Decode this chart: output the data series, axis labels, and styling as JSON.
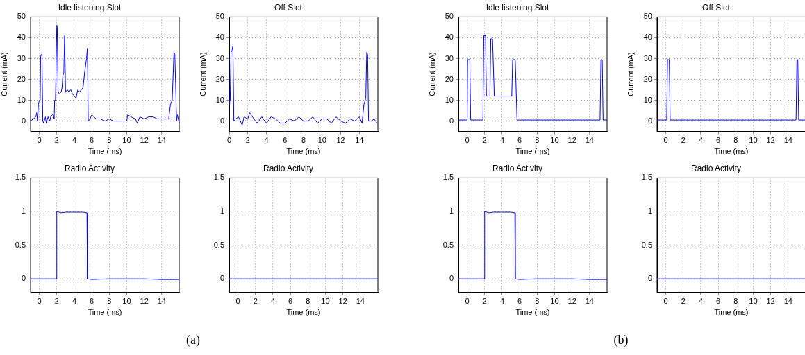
{
  "chart_data": [
    {
      "type": "line",
      "title": "Idle listening Slot",
      "xlabel": "Time (ms)",
      "ylabel": "Current (mA)",
      "xlim": [
        -1,
        16
      ],
      "xticks": [
        0,
        2,
        4,
        6,
        8,
        10,
        12,
        14
      ],
      "ylim": [
        -5,
        50
      ],
      "yticks": [
        0,
        10,
        20,
        30,
        40,
        50
      ],
      "grid": true,
      "series": [
        {
          "color": "#0000ff",
          "x": [
            -1,
            -0.7,
            -0.4,
            -0.3,
            -0.2,
            -0.1,
            0,
            0.1,
            0.15,
            0.25,
            0.3,
            0.4,
            0.5,
            0.7,
            0.8,
            1,
            1.2,
            1.3,
            1.5,
            1.6,
            1.7,
            1.75,
            1.85,
            2,
            2.05,
            2.15,
            2.3,
            2.5,
            2.6,
            2.7,
            2.8,
            2.9,
            3,
            3.2,
            3.4,
            3.6,
            3.8,
            4,
            4.2,
            4.4,
            4.6,
            4.8,
            5,
            5.2,
            5.4,
            5.5,
            5.6,
            5.8,
            6,
            6.5,
            7,
            7.5,
            8,
            8.5,
            9,
            9.5,
            10,
            10.1,
            10.5,
            11,
            11.2,
            11.5,
            12,
            12.5,
            13,
            13.5,
            14,
            14.5,
            14.8,
            15,
            15.2,
            15.4,
            15.5,
            15.7,
            15.8,
            16
          ],
          "values": [
            0,
            1,
            2,
            4,
            0,
            8,
            10,
            10,
            31,
            32,
            32,
            0,
            -1,
            2,
            -1,
            2,
            0,
            2,
            3,
            3,
            1,
            10,
            10,
            46,
            45,
            14,
            13,
            14,
            16,
            22,
            23,
            41,
            14,
            15,
            14,
            15,
            13,
            12,
            11,
            15,
            14,
            15,
            16,
            24,
            30,
            35,
            0,
            1,
            3,
            1,
            1,
            0,
            1,
            0,
            0,
            0,
            0,
            3,
            2,
            1,
            -1,
            2,
            1,
            2,
            2,
            1,
            1,
            1,
            1,
            8,
            10,
            33,
            32,
            0,
            3,
            -1
          ]
        }
      ]
    },
    {
      "type": "line",
      "title": "Off Slot",
      "xlabel": "Time (ms)",
      "ylabel": "Current (mA)",
      "xlim": [
        0,
        16
      ],
      "xticks": [
        0,
        2,
        4,
        6,
        8,
        10,
        12,
        14
      ],
      "ylim": [
        -5,
        50
      ],
      "yticks": [
        0,
        10,
        20,
        30,
        40,
        50
      ],
      "grid": true,
      "series": [
        {
          "color": "#0000ff",
          "x": [
            0,
            0.05,
            0.1,
            0.2,
            0.3,
            0.4,
            0.5,
            0.7,
            1,
            1.4,
            1.6,
            2,
            2.2,
            2.5,
            3,
            3.5,
            4,
            4.5,
            5,
            5.5,
            6,
            6.5,
            7,
            7.5,
            8,
            8.5,
            9,
            9.5,
            10,
            10.5,
            11,
            11.5,
            12,
            12.5,
            13,
            13.5,
            14,
            14.3,
            14.5,
            14.7,
            14.8,
            14.9,
            15,
            15.3,
            15.6,
            15.9
          ],
          "values": [
            8,
            10,
            10,
            33,
            34,
            36,
            0,
            1,
            2,
            -2,
            2,
            1,
            4,
            2,
            -1,
            2,
            -1,
            2,
            1,
            -1,
            -1,
            1,
            0,
            2,
            0,
            0,
            2,
            -1,
            1,
            1,
            -1,
            2,
            0,
            -1,
            1,
            0,
            2,
            -1,
            8,
            11,
            33,
            32,
            0,
            0,
            1,
            -1
          ]
        }
      ]
    },
    {
      "type": "line",
      "title": "Radio Activity",
      "xlabel": "Time (ms)",
      "xlim": [
        -1,
        16
      ],
      "xticks": [
        0,
        2,
        4,
        6,
        8,
        10,
        12,
        14
      ],
      "ylim": [
        -0.2,
        1.5
      ],
      "yticks": [
        0,
        0.5,
        1,
        1.5
      ],
      "grid": true,
      "annotations": [
        "(a)"
      ],
      "series": [
        {
          "color": "#0000ff",
          "x": [
            -1,
            1.95,
            2,
            2.5,
            3,
            4,
            5,
            5.45,
            5.5,
            6,
            8,
            10,
            12,
            14,
            16
          ],
          "values": [
            0,
            0,
            1,
            0.98,
            0.99,
            0.99,
            0.99,
            0.98,
            0,
            -0.01,
            0,
            0,
            0,
            -0.01,
            -0.01
          ]
        }
      ]
    },
    {
      "type": "line",
      "title": "Radio Activity",
      "xlabel": "Time (ms)",
      "xlim": [
        -1,
        16
      ],
      "xticks": [
        0,
        2,
        4,
        6,
        8,
        10,
        12,
        14
      ],
      "ylim": [
        -0.2,
        1.5
      ],
      "yticks": [
        0,
        0.5,
        1,
        1.5
      ],
      "grid": true,
      "series": [
        {
          "color": "#0000ff",
          "x": [
            -1,
            16
          ],
          "values": [
            0,
            0
          ]
        }
      ]
    },
    {
      "type": "line",
      "title": "Idle listening Slot",
      "xlabel": "Time (ms)",
      "ylabel": "Current (mA)",
      "xlim": [
        -1,
        16
      ],
      "xticks": [
        0,
        2,
        4,
        6,
        8,
        10,
        12,
        14
      ],
      "ylim": [
        -5,
        50
      ],
      "yticks": [
        0,
        10,
        20,
        30,
        40,
        50
      ],
      "grid": true,
      "series": [
        {
          "color": "#0000ff",
          "x": [
            -1,
            0,
            0.05,
            0.3,
            0.4,
            1.8,
            1.9,
            2.1,
            2.2,
            2.6,
            2.7,
            2.9,
            3.1,
            5.1,
            5.2,
            5.5,
            5.7,
            15.2,
            15.3,
            15.45,
            15.55,
            16
          ],
          "values": [
            0.5,
            0.5,
            29.5,
            29.5,
            0.5,
            0.5,
            41,
            41,
            12,
            12,
            39.5,
            39.5,
            12,
            12,
            29.5,
            29.5,
            0.5,
            0.5,
            29.5,
            29.5,
            0.5,
            0.5
          ]
        }
      ]
    },
    {
      "type": "line",
      "title": "Off Slot",
      "xlabel": "Time (ms)",
      "ylabel": "Current (mA)",
      "xlim": [
        -1,
        16
      ],
      "xticks": [
        0,
        2,
        4,
        6,
        8,
        10,
        12,
        14
      ],
      "ylim": [
        -5,
        50
      ],
      "yticks": [
        0,
        10,
        20,
        30,
        40,
        50
      ],
      "grid": true,
      "series": [
        {
          "color": "#0000ff",
          "x": [
            -1,
            0.1,
            0.2,
            0.4,
            0.5,
            14.9,
            15,
            15.1,
            15.2,
            16
          ],
          "values": [
            0.5,
            0.5,
            29.5,
            29.5,
            0.5,
            0.5,
            29.5,
            29.5,
            0.5,
            0.5
          ]
        }
      ]
    },
    {
      "type": "line",
      "title": "Radio Activity",
      "xlabel": "Time (ms)",
      "xlim": [
        -1,
        16
      ],
      "xticks": [
        0,
        2,
        4,
        6,
        8,
        10,
        12,
        14
      ],
      "ylim": [
        -0.2,
        1.5
      ],
      "yticks": [
        0,
        0.5,
        1,
        1.5
      ],
      "grid": true,
      "annotations": [
        "(b)"
      ],
      "series": [
        {
          "color": "#0000ff",
          "x": [
            -1,
            1.95,
            2,
            2.5,
            3,
            4,
            5,
            5.45,
            5.5,
            6,
            8,
            10,
            12,
            14,
            16
          ],
          "values": [
            0,
            0,
            1,
            0.98,
            0.99,
            0.99,
            0.99,
            0.98,
            0,
            -0.01,
            0,
            0,
            0,
            -0.01,
            -0.01
          ]
        }
      ]
    },
    {
      "type": "line",
      "title": "Radio Activity",
      "xlabel": "Time (ms)",
      "xlim": [
        -1,
        16
      ],
      "xticks": [
        0,
        2,
        4,
        6,
        8,
        10,
        12,
        14
      ],
      "ylim": [
        -0.2,
        1.5
      ],
      "yticks": [
        0,
        0.5,
        1,
        1.5
      ],
      "grid": true,
      "series": [
        {
          "color": "#0000ff",
          "x": [
            -1,
            16
          ],
          "values": [
            0,
            0
          ]
        }
      ]
    }
  ]
}
